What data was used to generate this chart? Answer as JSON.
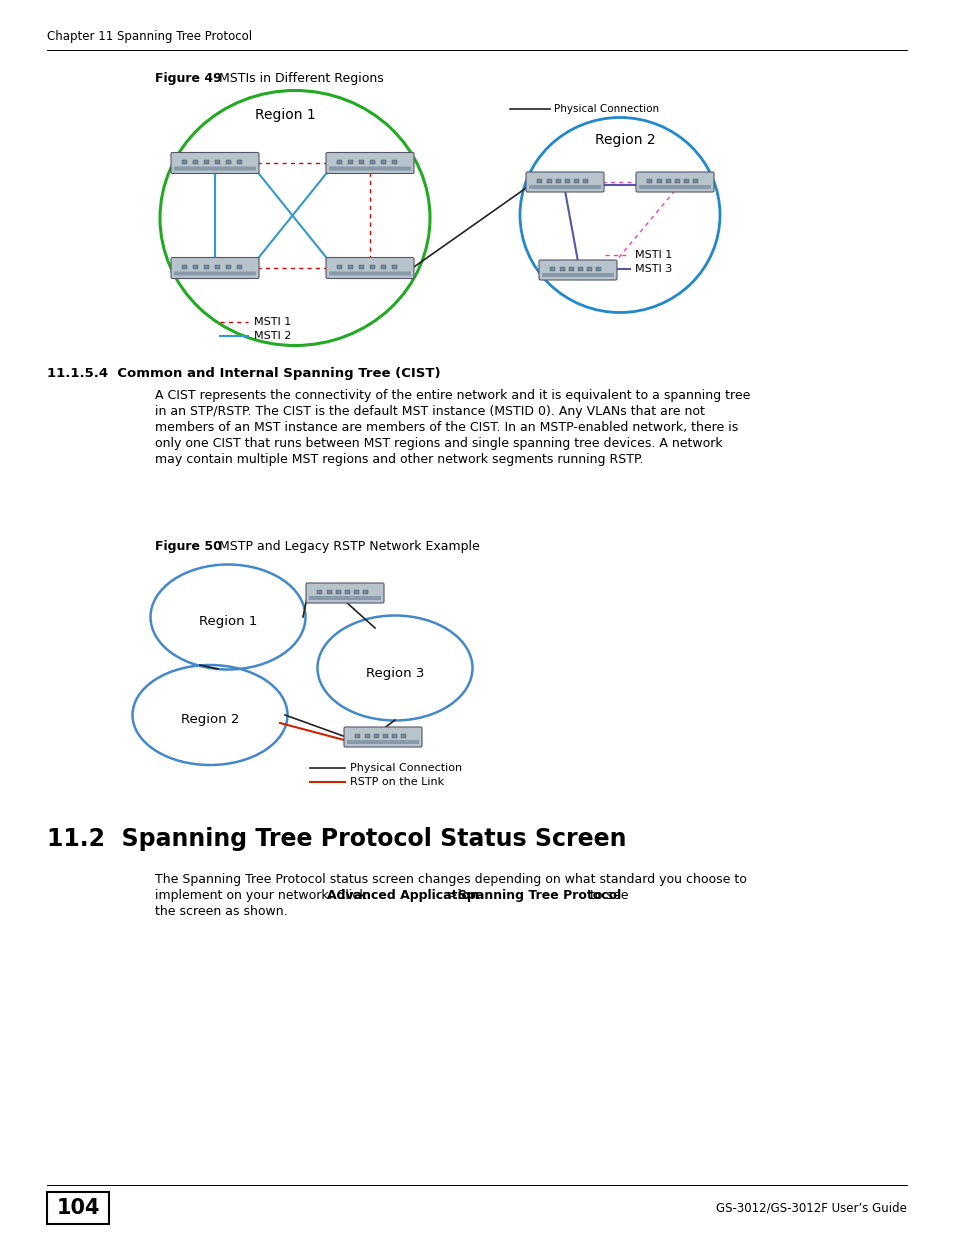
{
  "page_header": "Chapter 11 Spanning Tree Protocol",
  "page_number": "104",
  "footer_text": "GS-3012/GS-3012F User’s Guide",
  "fig49_title_bold": "Figure 49",
  "fig49_title_rest": "   MSTIs in Different Regions",
  "fig50_title_bold": "Figure 50",
  "fig50_title_rest": "   MSTP and Legacy RSTP Network Example",
  "section_title": "11.2  Spanning Tree Protocol Status Screen",
  "section_line1": "The Spanning Tree Protocol status screen changes depending on what standard you choose to",
  "section_line2_pre": "implement on your network. Click ",
  "section_line2_bold1": "Advanced Application",
  "section_line2_mid": " > ",
  "section_line2_bold2": "Spanning Tree Protocol",
  "section_line2_post": " to see",
  "section_line3": "the screen as shown.",
  "subsection_title": "11.1.5.4  Common and Internal Spanning Tree (CIST)",
  "sub_line1": "A CIST represents the connectivity of the entire network and it is equivalent to a spanning tree",
  "sub_line2": "in an STP/RSTP. The CIST is the default MST instance (MSTID 0). Any VLANs that are not",
  "sub_line3": "members of an MST instance are members of the CIST. In an MSTP-enabled network, there is",
  "sub_line4": "only one CIST that runs between MST regions and single spanning tree devices. A network",
  "sub_line5": "may contain multiple MST regions and other network segments running RSTP.",
  "bg_color": "#ffffff"
}
